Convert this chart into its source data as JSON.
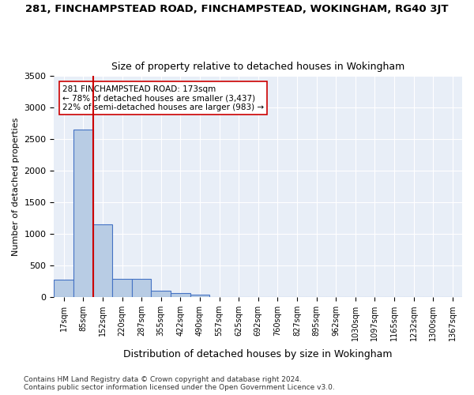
{
  "title_line1": "281, FINCHAMPSTEAD ROAD, FINCHAMPSTEAD, WOKINGHAM, RG40 3JT",
  "title_line2": "Size of property relative to detached houses in Wokingham",
  "xlabel": "Distribution of detached houses by size in Wokingham",
  "ylabel": "Number of detached properties",
  "bin_labels": [
    "17sqm",
    "85sqm",
    "152sqm",
    "220sqm",
    "287sqm",
    "355sqm",
    "422sqm",
    "490sqm",
    "557sqm",
    "625sqm",
    "692sqm",
    "760sqm",
    "827sqm",
    "895sqm",
    "962sqm",
    "1030sqm",
    "1097sqm",
    "1165sqm",
    "1232sqm",
    "1300sqm",
    "1367sqm"
  ],
  "bar_values": [
    270,
    2650,
    1150,
    280,
    280,
    90,
    55,
    35,
    0,
    0,
    0,
    0,
    0,
    0,
    0,
    0,
    0,
    0,
    0,
    0,
    0
  ],
  "bar_color": "#b8cce4",
  "bar_edge_color": "#4472c4",
  "vline_x_index": 2,
  "vline_color": "#cc0000",
  "annotation_text": "281 FINCHAMPSTEAD ROAD: 173sqm\n← 78% of detached houses are smaller (3,437)\n22% of semi-detached houses are larger (983) →",
  "annotation_box_color": "#ffffff",
  "annotation_box_edge": "#cc0000",
  "ylim": [
    0,
    3500
  ],
  "yticks": [
    0,
    500,
    1000,
    1500,
    2000,
    2500,
    3000,
    3500
  ],
  "background_color": "#e8eef7",
  "footer_line1": "Contains HM Land Registry data © Crown copyright and database right 2024.",
  "footer_line2": "Contains public sector information licensed under the Open Government Licence v3.0."
}
